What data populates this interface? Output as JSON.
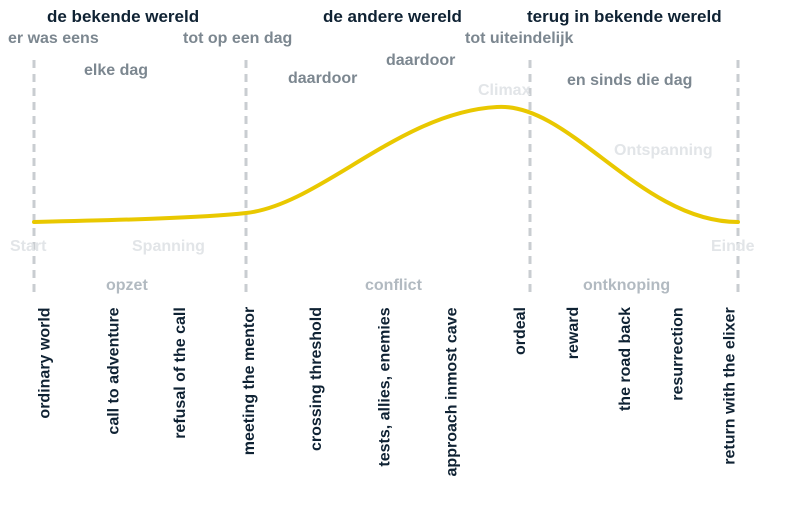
{
  "worlds": {
    "known": "de bekende wereld",
    "other": "de andere wereld",
    "return": "terug in bekende wereld"
  },
  "story": {
    "once_upon": "er was eens",
    "every_day": "elke dag",
    "until_one_day": "tot op een dag",
    "because1": "daardoor",
    "because2": "daardoor",
    "until_finally": "tot uiteindelijk",
    "since_that_day": "en sinds die dag"
  },
  "phases": {
    "start": "Start",
    "tension": "Spanning",
    "climax": "Climax",
    "relaxation": "Ontspanning",
    "end": "Einde"
  },
  "acts": {
    "setup": "opzet",
    "conflict": "conflict",
    "resolution": "ontknoping"
  },
  "steps": [
    "ordinary world",
    "call to adventure",
    "refusal of the call",
    "meeting the mentor",
    "crossing threshold",
    "tests, allies, enemies",
    "approach inmost cave",
    "ordeal",
    "reward",
    "the road back",
    "resurrection",
    "return with the elixer"
  ],
  "colors": {
    "curve": "#e9c800",
    "divider": "#c9cdd1",
    "dark": "#0f2233"
  }
}
